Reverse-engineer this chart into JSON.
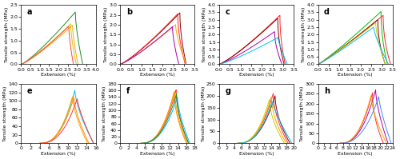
{
  "subplots": [
    {
      "label": "a",
      "ylim": [
        0,
        2.5
      ],
      "xlim": [
        0,
        4
      ],
      "yticks": [
        0,
        0.5,
        1,
        1.5,
        2,
        2.5
      ],
      "xticks": [
        0,
        0.5,
        1,
        1.5,
        2,
        2.5,
        3,
        3.5,
        4
      ],
      "ylabel": "Tensile strength (MPa)",
      "xlabel": "Extension (%)",
      "curves": [
        {
          "color": "#228B22",
          "peak_x": 2.9,
          "peak_y": 2.2,
          "end_x": 3.3,
          "drop_rate": 1.5,
          "rise_exp": 1.2
        },
        {
          "color": "#CCCC00",
          "peak_x": 2.65,
          "peak_y": 1.7,
          "end_x": 2.95,
          "drop_rate": 1.5,
          "rise_exp": 1.2
        },
        {
          "color": "#FFA500",
          "peak_x": 2.75,
          "peak_y": 1.65,
          "end_x": 3.05,
          "drop_rate": 1.5,
          "rise_exp": 1.2
        },
        {
          "color": "#FF4444",
          "peak_x": 2.55,
          "peak_y": 1.6,
          "end_x": 2.8,
          "drop_rate": 1.5,
          "rise_exp": 1.2
        }
      ]
    },
    {
      "label": "b",
      "ylim": [
        0,
        3
      ],
      "xlim": [
        0,
        3.5
      ],
      "yticks": [
        0,
        0.5,
        1,
        1.5,
        2,
        2.5,
        3
      ],
      "xticks": [
        0,
        0.5,
        1,
        1.5,
        2,
        2.5,
        3,
        3.5
      ],
      "ylabel": "Tensile strength (MPa)",
      "xlabel": "Extension (%)",
      "curves": [
        {
          "color": "#8B0000",
          "peak_x": 2.8,
          "peak_y": 2.6,
          "end_x": 3.1,
          "drop_rate": 1.8,
          "rise_exp": 1.2
        },
        {
          "color": "#FF2222",
          "peak_x": 2.7,
          "peak_y": 2.55,
          "end_x": 3.05,
          "drop_rate": 1.8,
          "rise_exp": 1.2
        },
        {
          "color": "#FFA500",
          "peak_x": 2.6,
          "peak_y": 2.0,
          "end_x": 3.1,
          "drop_rate": 1.5,
          "rise_exp": 1.2
        },
        {
          "color": "#AA00AA",
          "peak_x": 2.45,
          "peak_y": 1.9,
          "end_x": 2.75,
          "drop_rate": 1.5,
          "rise_exp": 1.2
        }
      ]
    },
    {
      "label": "c",
      "ylim": [
        0,
        4
      ],
      "xlim": [
        0,
        3.5
      ],
      "yticks": [
        0,
        0.5,
        1,
        1.5,
        2,
        2.5,
        3,
        3.5,
        4
      ],
      "xticks": [
        0,
        0.5,
        1,
        1.5,
        2,
        2.5,
        3,
        3.5
      ],
      "ylabel": "Tensile strength (MPa)",
      "xlabel": "Extension (%)",
      "curves": [
        {
          "color": "#FF2222",
          "peak_x": 2.85,
          "peak_y": 3.3,
          "end_x": 3.1,
          "drop_rate": 2.0,
          "rise_exp": 1.2
        },
        {
          "color": "#8B0000",
          "peak_x": 2.75,
          "peak_y": 3.1,
          "end_x": 3.05,
          "drop_rate": 2.0,
          "rise_exp": 1.2
        },
        {
          "color": "#AA00AA",
          "peak_x": 2.6,
          "peak_y": 2.2,
          "end_x": 2.95,
          "drop_rate": 1.8,
          "rise_exp": 1.2
        },
        {
          "color": "#00BFFF",
          "peak_x": 2.75,
          "peak_y": 1.8,
          "end_x": 3.2,
          "drop_rate": 1.2,
          "rise_exp": 1.2
        }
      ]
    },
    {
      "label": "d",
      "ylim": [
        0,
        4
      ],
      "xlim": [
        0,
        3.5
      ],
      "yticks": [
        0,
        0.5,
        1,
        1.5,
        2,
        2.5,
        3,
        3.5,
        4
      ],
      "xticks": [
        0,
        0.5,
        1,
        1.5,
        2,
        2.5,
        3,
        3.5
      ],
      "ylabel": "Tensile strength (MPa)",
      "xlabel": "Extension (%)",
      "curves": [
        {
          "color": "#00BB00",
          "peak_x": 2.95,
          "peak_y": 3.55,
          "end_x": 3.25,
          "drop_rate": 2.0,
          "rise_exp": 1.1
        },
        {
          "color": "#FF2222",
          "peak_x": 3.05,
          "peak_y": 3.3,
          "end_x": 3.4,
          "drop_rate": 2.0,
          "rise_exp": 1.1
        },
        {
          "color": "#8B0000",
          "peak_x": 2.8,
          "peak_y": 3.0,
          "end_x": 3.15,
          "drop_rate": 2.0,
          "rise_exp": 1.1
        },
        {
          "color": "#CCCC00",
          "peak_x": 2.7,
          "peak_y": 2.8,
          "end_x": 3.15,
          "drop_rate": 1.5,
          "rise_exp": 1.1
        },
        {
          "color": "#00BFFF",
          "peak_x": 2.6,
          "peak_y": 2.5,
          "end_x": 3.3,
          "drop_rate": 1.3,
          "rise_exp": 1.1
        }
      ]
    },
    {
      "label": "e",
      "ylim": [
        0,
        140
      ],
      "xlim": [
        0,
        16
      ],
      "yticks": [
        0,
        20,
        40,
        60,
        80,
        100,
        120,
        140
      ],
      "xticks": [
        0,
        2,
        4,
        6,
        8,
        10,
        12,
        14,
        16
      ],
      "ylabel": "Tensile strength (MPa)",
      "xlabel": "Extension (%)",
      "curves": [
        {
          "color": "#00BFFF",
          "peak_x": 11.5,
          "peak_y": 125,
          "end_x": 15.5,
          "drop_rate": 1.5,
          "rise_exp": 2.5,
          "lag": 4.0
        },
        {
          "color": "#FFA500",
          "peak_x": 11.0,
          "peak_y": 110,
          "end_x": 14.2,
          "drop_rate": 1.5,
          "rise_exp": 2.5,
          "lag": 4.0
        },
        {
          "color": "#FF8C00",
          "peak_x": 11.3,
          "peak_y": 108,
          "end_x": 14.5,
          "drop_rate": 1.5,
          "rise_exp": 2.5,
          "lag": 4.0
        },
        {
          "color": "#FF3333",
          "peak_x": 12.0,
          "peak_y": 105,
          "end_x": 15.5,
          "drop_rate": 1.3,
          "rise_exp": 2.5,
          "lag": 4.0
        }
      ]
    },
    {
      "label": "f",
      "ylim": [
        0,
        180
      ],
      "xlim": [
        0,
        18
      ],
      "yticks": [
        0,
        20,
        40,
        60,
        80,
        100,
        120,
        140,
        160,
        180
      ],
      "xticks": [
        0,
        2,
        4,
        6,
        8,
        10,
        12,
        14,
        16,
        18
      ],
      "ylabel": "Tensile strength (MPa)",
      "xlabel": "Extension (%)",
      "curves": [
        {
          "color": "#FF3333",
          "peak_x": 13.5,
          "peak_y": 162,
          "end_x": 16.5,
          "drop_rate": 1.8,
          "rise_exp": 2.5,
          "lag": 5.0
        },
        {
          "color": "#FFA500",
          "peak_x": 13.2,
          "peak_y": 158,
          "end_x": 16.2,
          "drop_rate": 1.8,
          "rise_exp": 2.5,
          "lag": 5.0
        },
        {
          "color": "#FF8C00",
          "peak_x": 13.0,
          "peak_y": 155,
          "end_x": 16.0,
          "drop_rate": 1.8,
          "rise_exp": 2.5,
          "lag": 5.0
        },
        {
          "color": "#00BFFF",
          "peak_x": 13.8,
          "peak_y": 140,
          "end_x": 16.8,
          "drop_rate": 1.5,
          "rise_exp": 2.5,
          "lag": 5.0
        },
        {
          "color": "#228B22",
          "peak_x": 13.6,
          "peak_y": 150,
          "end_x": 16.5,
          "drop_rate": 1.8,
          "rise_exp": 2.5,
          "lag": 5.0
        }
      ]
    },
    {
      "label": "g",
      "ylim": [
        0,
        250
      ],
      "xlim": [
        0,
        20
      ],
      "yticks": [
        0,
        50,
        100,
        150,
        200,
        250
      ],
      "xticks": [
        0,
        2,
        4,
        6,
        8,
        10,
        12,
        14,
        16,
        18,
        20
      ],
      "ylabel": "Tensile strength (MPa)",
      "xlabel": "Extension (%)",
      "curves": [
        {
          "color": "#FF3333",
          "peak_x": 14.5,
          "peak_y": 210,
          "end_x": 18.5,
          "drop_rate": 1.8,
          "rise_exp": 2.5,
          "lag": 5.0
        },
        {
          "color": "#8B0000",
          "peak_x": 15.0,
          "peak_y": 200,
          "end_x": 19.0,
          "drop_rate": 1.8,
          "rise_exp": 2.5,
          "lag": 5.0
        },
        {
          "color": "#FFA500",
          "peak_x": 14.0,
          "peak_y": 195,
          "end_x": 18.0,
          "drop_rate": 1.8,
          "rise_exp": 2.5,
          "lag": 5.0
        },
        {
          "color": "#CCCC00",
          "peak_x": 13.5,
          "peak_y": 185,
          "end_x": 17.5,
          "drop_rate": 1.8,
          "rise_exp": 2.5,
          "lag": 5.0
        },
        {
          "color": "#00BFFF",
          "peak_x": 14.2,
          "peak_y": 175,
          "end_x": 19.5,
          "drop_rate": 1.2,
          "rise_exp": 2.5,
          "lag": 5.0
        }
      ]
    },
    {
      "label": "h",
      "ylim": [
        0,
        300
      ],
      "xlim": [
        0,
        24
      ],
      "yticks": [
        0,
        50,
        100,
        150,
        200,
        250,
        300
      ],
      "xticks": [
        0,
        2,
        4,
        6,
        8,
        10,
        12,
        14,
        16,
        18,
        20,
        22,
        24
      ],
      "ylabel": "Tensile strength (MPa)",
      "xlabel": "Extension (%)",
      "curves": [
        {
          "color": "#AA00AA",
          "peak_x": 18.5,
          "peak_y": 270,
          "end_x": 22.5,
          "drop_rate": 1.5,
          "rise_exp": 2.5,
          "lag": 7.0
        },
        {
          "color": "#FF3333",
          "peak_x": 17.5,
          "peak_y": 255,
          "end_x": 21.0,
          "drop_rate": 2.0,
          "rise_exp": 2.5,
          "lag": 7.0
        },
        {
          "color": "#FFA500",
          "peak_x": 17.0,
          "peak_y": 240,
          "end_x": 22.0,
          "drop_rate": 1.5,
          "rise_exp": 2.5,
          "lag": 7.0
        },
        {
          "color": "#4488FF",
          "peak_x": 19.5,
          "peak_y": 235,
          "end_x": 23.5,
          "drop_rate": 1.3,
          "rise_exp": 2.5,
          "lag": 7.0
        }
      ]
    }
  ],
  "background_color": "#ffffff",
  "tick_fontsize": 4.5,
  "label_fontsize": 4.5,
  "subplot_label_fontsize": 7,
  "linewidth": 0.7
}
